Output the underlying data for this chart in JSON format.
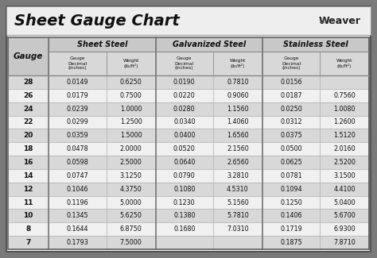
{
  "title": "Sheet Gauge Chart",
  "bg_outer": "#7a7a7a",
  "bg_white": "#ffffff",
  "bg_header_group": "#c8c8c8",
  "bg_header_sub": "#d8d8d8",
  "bg_row_shaded": "#d8d8d8",
  "bg_row_white": "#f0f0f0",
  "col_headers": [
    "Sheet Steel",
    "Galvanized Steel",
    "Stainless Steel"
  ],
  "gauges": [
    28,
    26,
    24,
    22,
    20,
    18,
    16,
    14,
    12,
    11,
    10,
    8,
    7
  ],
  "sheet_steel": [
    [
      "0.0149",
      "0.6250"
    ],
    [
      "0.0179",
      "0.7500"
    ],
    [
      "0.0239",
      "1.0000"
    ],
    [
      "0.0299",
      "1.2500"
    ],
    [
      "0.0359",
      "1.5000"
    ],
    [
      "0.0478",
      "2.0000"
    ],
    [
      "0.0598",
      "2.5000"
    ],
    [
      "0.0747",
      "3.1250"
    ],
    [
      "0.1046",
      "4.3750"
    ],
    [
      "0.1196",
      "5.0000"
    ],
    [
      "0.1345",
      "5.6250"
    ],
    [
      "0.1644",
      "6.8750"
    ],
    [
      "0.1793",
      "7.5000"
    ]
  ],
  "galvanized_steel": [
    [
      "0.0190",
      "0.7810"
    ],
    [
      "0.0220",
      "0.9060"
    ],
    [
      "0.0280",
      "1.1560"
    ],
    [
      "0.0340",
      "1.4060"
    ],
    [
      "0.0400",
      "1.6560"
    ],
    [
      "0.0520",
      "2.1560"
    ],
    [
      "0.0640",
      "2.6560"
    ],
    [
      "0.0790",
      "3.2810"
    ],
    [
      "0.1080",
      "4.5310"
    ],
    [
      "0.1230",
      "5.1560"
    ],
    [
      "0.1380",
      "5.7810"
    ],
    [
      "0.1680",
      "7.0310"
    ],
    [
      "",
      ""
    ]
  ],
  "stainless_steel": [
    [
      "0.0156",
      ""
    ],
    [
      "0.0187",
      "0.7560"
    ],
    [
      "0.0250",
      "1.0080"
    ],
    [
      "0.0312",
      "1.2600"
    ],
    [
      "0.0375",
      "1.5120"
    ],
    [
      "0.0500",
      "2.0160"
    ],
    [
      "0.0625",
      "2.5200"
    ],
    [
      "0.0781",
      "3.1500"
    ],
    [
      "0.1094",
      "4.4100"
    ],
    [
      "0.1250",
      "5.0400"
    ],
    [
      "0.1406",
      "5.6700"
    ],
    [
      "0.1719",
      "6.9300"
    ],
    [
      "0.1875",
      "7.8710"
    ]
  ]
}
